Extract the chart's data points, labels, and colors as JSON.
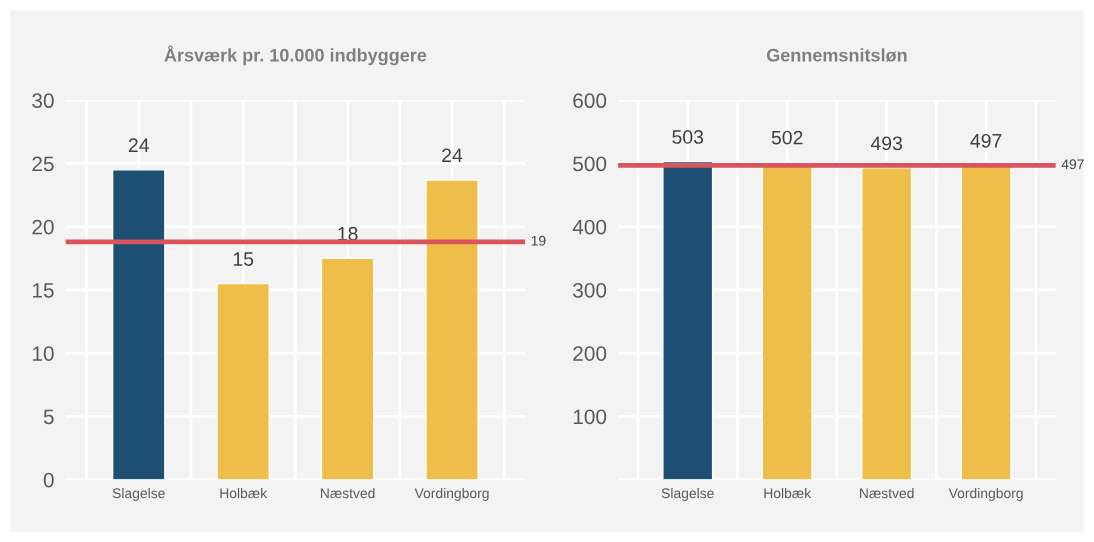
{
  "chart_data": [
    {
      "type": "bar",
      "title": "Årsværk pr. 10.000 indbyggere",
      "categories": [
        "Slagelse",
        "Holbæk",
        "Næstved",
        "Vordingborg"
      ],
      "values": [
        24.5,
        15.5,
        17.5,
        23.7
      ],
      "colors": [
        "#1d4f73",
        "#efbd4a",
        "#efbd4a",
        "#efbd4a"
      ],
      "value_labels": [
        "24",
        "15",
        "18",
        "24"
      ],
      "ylim": [
        0,
        30
      ],
      "yticks": [
        0,
        5,
        10,
        15,
        20,
        25,
        30
      ],
      "grid": true,
      "ref_lines": [
        {
          "axis": "y",
          "value": 18.8,
          "label": "19",
          "color": "#d9545b"
        }
      ]
    },
    {
      "type": "bar",
      "title": "Gennemsnitsløn",
      "categories": [
        "Slagelse",
        "Holbæk",
        "Næstved",
        "Vordingborg"
      ],
      "values": [
        503,
        502,
        493,
        497
      ],
      "colors": [
        "#1d4f73",
        "#efbd4a",
        "#efbd4a",
        "#efbd4a"
      ],
      "data_labels": true,
      "ylim": [
        0,
        600
      ],
      "yticks": [
        {
          "value": 0,
          "label": null
        },
        100,
        200,
        300,
        400,
        500,
        600
      ],
      "grid": true,
      "ref_lines": [
        {
          "axis": "y",
          "value": 497,
          "label": "497",
          "color": "#d9545b"
        }
      ]
    }
  ]
}
